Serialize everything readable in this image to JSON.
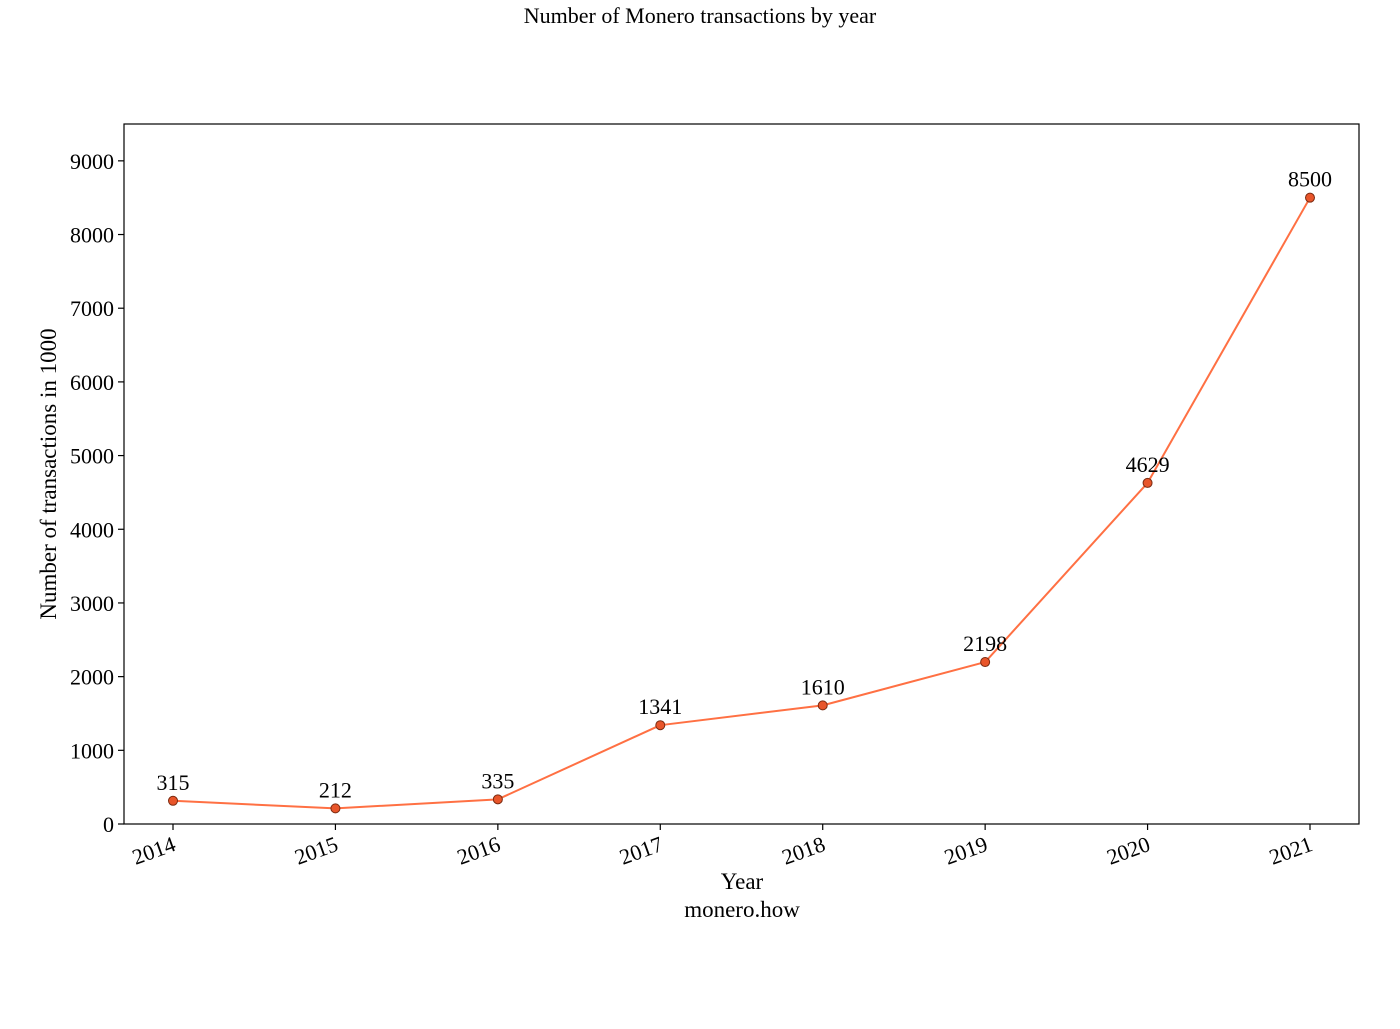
{
  "chart_data": {
    "type": "line",
    "title": "Number of Monero transactions by year",
    "xlabel": "Year",
    "ylabel": "Number of transactions in 1000",
    "source": "monero.how",
    "categories": [
      "2014",
      "2015",
      "2016",
      "2017",
      "2018",
      "2019",
      "2020",
      "2021"
    ],
    "series": [
      {
        "values": [
          315,
          212,
          335,
          1341,
          1610,
          2198,
          4629,
          8500
        ],
        "data_labels": [
          "315",
          "212",
          "335",
          "1341",
          "1610",
          "2198",
          "4629",
          "8500"
        ],
        "line_color": "#ff7043",
        "marker_fill": "#e8552a",
        "marker_edge": "#7a2a10"
      }
    ],
    "yticks": [
      0,
      1000,
      2000,
      3000,
      4000,
      5000,
      6000,
      7000,
      8000,
      9000
    ],
    "ylim": [
      0,
      9500
    ],
    "xtick_rotation": "rotated ~20 degrees",
    "grid": false,
    "legend": "none"
  }
}
